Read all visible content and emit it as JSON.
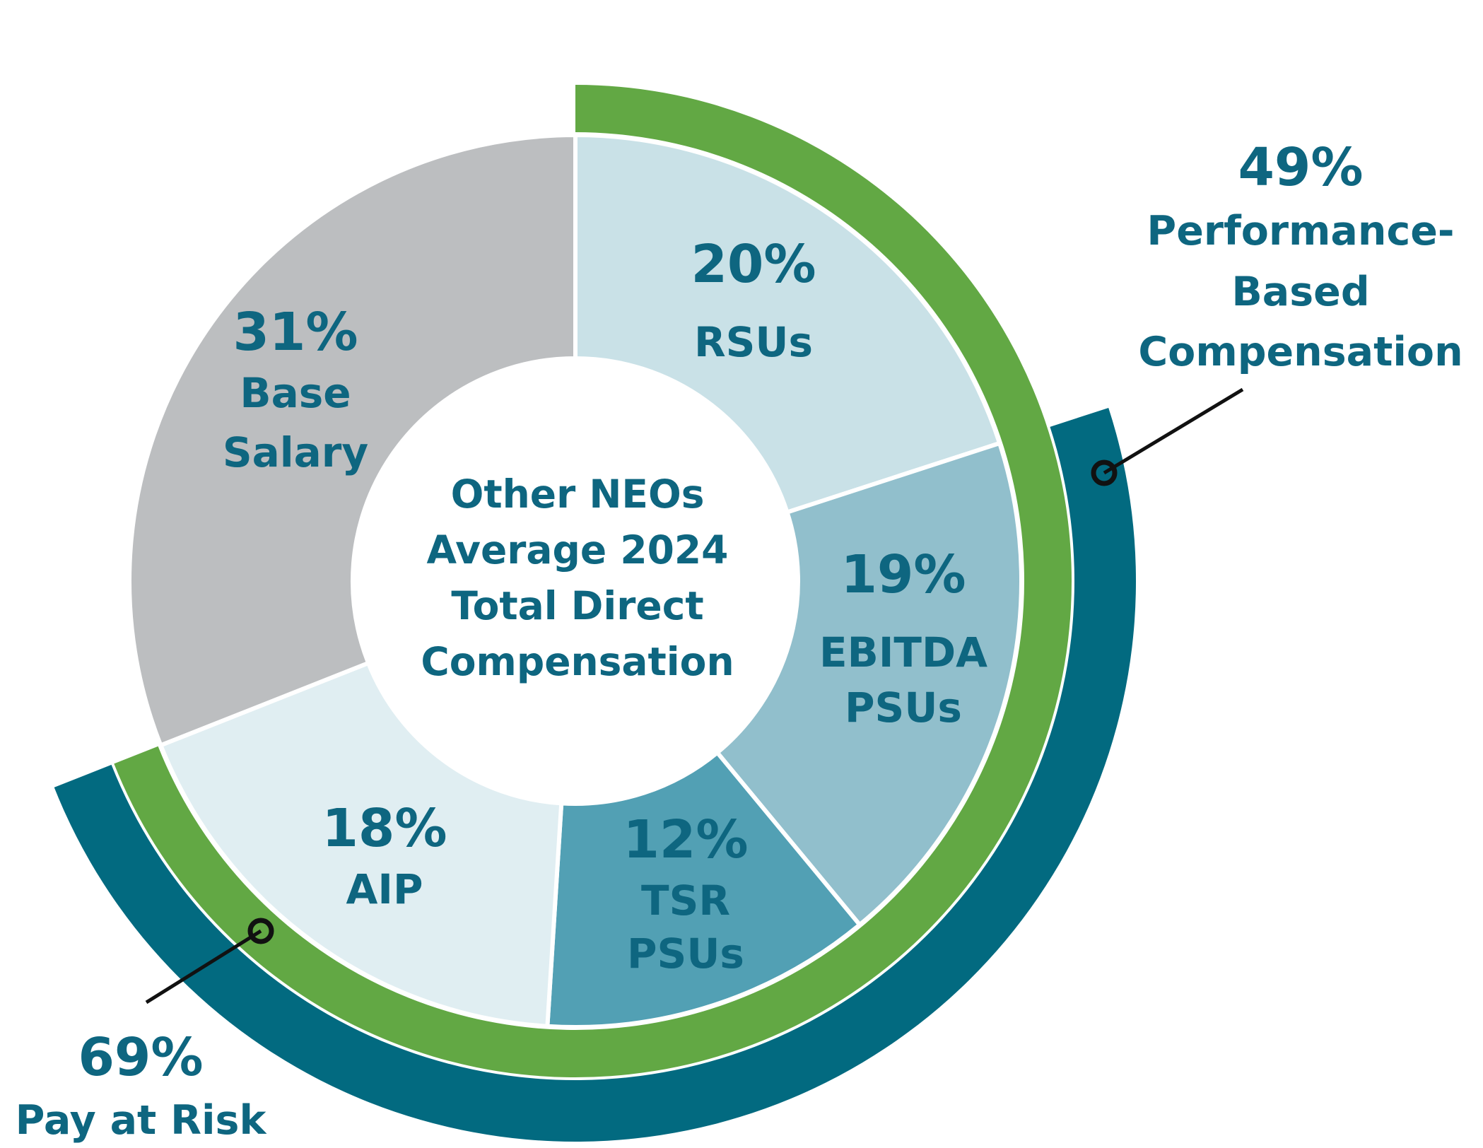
{
  "chart_data": {
    "type": "pie",
    "variant": "donut",
    "title": "Other NEOs Average 2024 Total Direct Compensation",
    "title_lines": [
      "Other NEOs",
      "Average 2024",
      "Total Direct",
      "Compensation"
    ],
    "segments": [
      {
        "name": "RSUs",
        "value": 20,
        "pct_label": "20%",
        "label_lines": [
          "RSUs"
        ],
        "color": "#c9e1e7"
      },
      {
        "name": "EBITDA PSUs",
        "value": 19,
        "pct_label": "19%",
        "label_lines": [
          "EBITDA",
          "PSUs"
        ],
        "color": "#91bfcc"
      },
      {
        "name": "TSR PSUs",
        "value": 12,
        "pct_label": "12%",
        "label_lines": [
          "TSR",
          "PSUs"
        ],
        "color": "#52a0b4"
      },
      {
        "name": "AIP",
        "value": 18,
        "pct_label": "18%",
        "label_lines": [
          "AIP"
        ],
        "color": "#e0eef2"
      },
      {
        "name": "Base Salary",
        "value": 31,
        "pct_label": "31%",
        "label_lines": [
          "Base",
          "Salary"
        ],
        "color": "#bcbec0"
      }
    ],
    "callouts": [
      {
        "name": "Pay at Risk",
        "value": 69,
        "pct_label": "69%",
        "label_lines": [
          "Pay at Risk"
        ],
        "covers": [
          "RSUs",
          "EBITDA PSUs",
          "TSR PSUs",
          "AIP"
        ],
        "color": "#62a844"
      },
      {
        "name": "Performance-Based Compensation",
        "value": 49,
        "pct_label": "49%",
        "label_lines": [
          "Performance-",
          "Based",
          "Compensation"
        ],
        "covers": [
          "EBITDA PSUs",
          "TSR PSUs",
          "AIP"
        ],
        "color": "#026a80"
      }
    ],
    "text_color": "#0e6680"
  }
}
